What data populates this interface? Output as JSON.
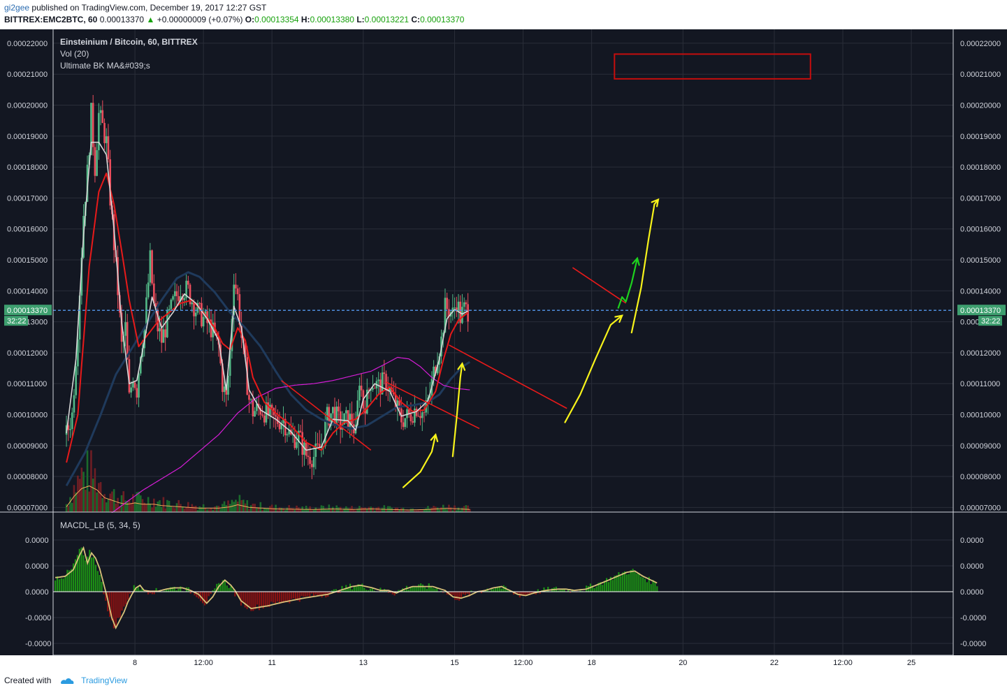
{
  "header": {
    "author": "gi2gee",
    "published_text": "published on TradingView.com, December 19, 2017 12:27 GST",
    "symbol": "BITTREX:EMC2BTC, 60",
    "last": "0.00013370",
    "change": "+0.00000009 (+0.07%)",
    "change_arrow": "▲",
    "o_label": "O:",
    "o": "0.00013354",
    "h_label": "H:",
    "h": "0.00013380",
    "l_label": "L:",
    "l": "0.00013221",
    "c_label": "C:",
    "c": "0.00013370"
  },
  "footer": {
    "created_with": "Created with",
    "brand": "TradingView"
  },
  "legend": {
    "title": "Einsteinium / Bitcoin, 60, BITTREX",
    "vol": "Vol (20)",
    "indicator": "Ultimate BK MA&#039;s",
    "macd": "MACDL_LB (5, 34, 5)"
  },
  "price_tag": {
    "value": "0.00013370",
    "countdown": "32:22"
  },
  "colors": {
    "background": "#131722",
    "grid": "#2a2e39",
    "up": "#53b987",
    "down": "#eb4d5c",
    "ma_red": "#e81a1a",
    "ma_white": "#d7d7d7",
    "ma_blue": "#1f3a5c",
    "ma_magenta": "#d51dd6",
    "vol_ma": "#f2a85b",
    "price_line": "#4f8cdb",
    "price_tag": "#3e9f6f",
    "annotation_yellow": "#f7f31a",
    "annotation_green": "#1ed21e",
    "annotation_red": "#e81a1a",
    "macd_hist_up": "#1c8f15",
    "macd_hist_down": "#8a1212",
    "macd_signal": "#d8c27a"
  },
  "chart_data": {
    "type": "candlestick",
    "y_axis_labels": [
      "0.00022000",
      "0.00021000",
      "0.00020000",
      "0.00019000",
      "0.00018000",
      "0.00017000",
      "0.00016000",
      "0.00015000",
      "0.00014000",
      "0.00013000",
      "0.00012000",
      "0.00011000",
      "0.00010000",
      "0.00009000",
      "0.00008000",
      "0.00007000"
    ],
    "y_axis_values": [
      0.00022,
      0.00021,
      0.0002,
      0.00019,
      0.00018,
      0.00017,
      0.00016,
      0.00015,
      0.00014,
      0.00013,
      0.00012,
      0.00011,
      0.0001,
      9e-05,
      8e-05,
      7e-05
    ],
    "ylim": [
      6.85e-05,
      0.0002245
    ],
    "x_ticks": [
      {
        "label": "8",
        "t": 36
      },
      {
        "label": "12:00",
        "t": 72
      },
      {
        "label": "11",
        "t": 108
      },
      {
        "label": "13",
        "t": 156
      },
      {
        "label": "15",
        "t": 204
      },
      {
        "label": "12:00",
        "t": 240
      },
      {
        "label": "18",
        "t": 276
      },
      {
        "label": "20",
        "t": 324
      },
      {
        "label": "22",
        "t": 372
      },
      {
        "label": "12:00",
        "t": 408
      },
      {
        "label": "25",
        "t": 444
      }
    ],
    "x_range": [
      -7,
      466
    ],
    "last_price": 0.0001337,
    "price_keypoints": [
      [
        0,
        9.35e-05
      ],
      [
        3,
        0.0001
      ],
      [
        6,
        0.000128
      ],
      [
        9,
        0.000165
      ],
      [
        11,
        0.000178
      ],
      [
        13,
        0.000197
      ],
      [
        15,
        0.00018
      ],
      [
        17,
        0.000197
      ],
      [
        19,
        0.000193
      ],
      [
        21,
        0.000188
      ],
      [
        23,
        0.00017
      ],
      [
        25,
        0.000155
      ],
      [
        27,
        0.00014
      ],
      [
        29,
        0.000122
      ],
      [
        31,
        0.000128
      ],
      [
        33,
        0.000105
      ],
      [
        35,
        0.000113
      ],
      [
        37,
        0.000108
      ],
      [
        39,
        0.000121
      ],
      [
        41,
        0.000128
      ],
      [
        44,
        0.00015
      ],
      [
        46,
        0.000135
      ],
      [
        48,
        0.000128
      ],
      [
        50,
        0.000124
      ],
      [
        53,
        0.00013
      ],
      [
        56,
        0.000136
      ],
      [
        60,
        0.000141
      ],
      [
        64,
        0.00014
      ],
      [
        68,
        0.000134
      ],
      [
        72,
        0.000131
      ],
      [
        76,
        0.000128
      ],
      [
        80,
        0.000122
      ],
      [
        82,
        0.00011
      ],
      [
        84,
        0.000105
      ],
      [
        86,
        0.00012
      ],
      [
        88,
        0.000145
      ],
      [
        90,
        0.000138
      ],
      [
        92,
        0.000125
      ],
      [
        94,
        0.000115
      ],
      [
        96,
        0.000105
      ],
      [
        98,
        0.000101
      ],
      [
        102,
        0.000102
      ],
      [
        106,
        0.0001
      ],
      [
        110,
        9.8e-05
      ],
      [
        114,
        9.85e-05
      ],
      [
        118,
        9.25e-05
      ],
      [
        122,
        9.3e-05
      ],
      [
        126,
        8.7e-05
      ],
      [
        130,
        8.65e-05
      ],
      [
        134,
        9e-05
      ],
      [
        137,
        9.9e-05
      ],
      [
        140,
        0.000101
      ],
      [
        144,
        9.7e-05
      ],
      [
        148,
        9.85e-05
      ],
      [
        150,
        9.8e-05
      ],
      [
        152,
        9.35e-05
      ],
      [
        154,
        0.000112
      ],
      [
        156,
        0.000103
      ],
      [
        158,
        0.000105
      ],
      [
        160,
        0.000111
      ],
      [
        164,
        0.000109
      ],
      [
        168,
        0.000111
      ],
      [
        172,
        0.0001045
      ],
      [
        176,
        9.85e-05
      ],
      [
        180,
        9.95e-05
      ],
      [
        184,
        0.0001025
      ],
      [
        188,
        0.0001
      ],
      [
        191,
        0.0001065
      ],
      [
        193,
        0.0001135
      ],
      [
        195,
        0.0001195
      ],
      [
        197,
        0.000124
      ],
      [
        199,
        0.0001345
      ],
      [
        201,
        0.000134
      ],
      [
        203,
        0.0001325
      ],
      [
        205,
        0.000137
      ],
      [
        207,
        0.0001315
      ],
      [
        209,
        0.000134
      ],
      [
        211,
        0.0001337
      ]
    ],
    "ma_white_keypoints": [
      [
        0,
        9.4e-05
      ],
      [
        5,
        0.000118
      ],
      [
        9,
        0.000158
      ],
      [
        13,
        0.000188
      ],
      [
        17,
        0.000188
      ],
      [
        21,
        0.000184
      ],
      [
        25,
        0.00016
      ],
      [
        29,
        0.00013
      ],
      [
        33,
        0.00011
      ],
      [
        37,
        0.000111
      ],
      [
        41,
        0.000124
      ],
      [
        45,
        0.000138
      ],
      [
        50,
        0.000128
      ],
      [
        56,
        0.000133
      ],
      [
        62,
        0.000139
      ],
      [
        68,
        0.000136
      ],
      [
        74,
        0.000131
      ],
      [
        80,
        0.000124
      ],
      [
        84,
        0.000108
      ],
      [
        88,
        0.000135
      ],
      [
        92,
        0.000128
      ],
      [
        96,
        0.000108
      ],
      [
        102,
        0.0001015
      ],
      [
        110,
        9.85e-05
      ],
      [
        118,
        9.45e-05
      ],
      [
        126,
        8.85e-05
      ],
      [
        134,
        8.95e-05
      ],
      [
        140,
        9.85e-05
      ],
      [
        148,
        9.8e-05
      ],
      [
        152,
        9.5e-05
      ],
      [
        156,
        0.000105
      ],
      [
        162,
        0.00011
      ],
      [
        170,
        0.0001075
      ],
      [
        176,
        9.95e-05
      ],
      [
        184,
        0.000101
      ],
      [
        190,
        0.0001045
      ],
      [
        196,
        0.000118
      ],
      [
        200,
        0.000131
      ],
      [
        204,
        0.000134
      ],
      [
        208,
        0.0001325
      ],
      [
        211,
        0.0001335
      ]
    ],
    "ma_red_keypoints": [
      [
        0,
        8.45e-05
      ],
      [
        6,
        0.0001
      ],
      [
        12,
        0.000148
      ],
      [
        17,
        0.000172
      ],
      [
        21,
        0.000178
      ],
      [
        25,
        0.000168
      ],
      [
        29,
        0.000153
      ],
      [
        33,
        0.000137
      ],
      [
        38,
        0.000122
      ],
      [
        43,
        0.000126
      ],
      [
        48,
        0.00013
      ],
      [
        54,
        0.000133
      ],
      [
        60,
        0.000136
      ],
      [
        66,
        0.000137
      ],
      [
        72,
        0.000133
      ],
      [
        78,
        0.000128
      ],
      [
        82,
        0.000123
      ],
      [
        86,
        0.000121
      ],
      [
        90,
        0.000128
      ],
      [
        94,
        0.000124
      ],
      [
        98,
        0.000112
      ],
      [
        104,
        0.000104
      ],
      [
        110,
        0.0001005
      ],
      [
        118,
        9.65e-05
      ],
      [
        126,
        9.1e-05
      ],
      [
        134,
        8.85e-05
      ],
      [
        140,
        9.4e-05
      ],
      [
        146,
        9.75e-05
      ],
      [
        152,
        9.85e-05
      ],
      [
        158,
        0.000102
      ],
      [
        164,
        0.0001065
      ],
      [
        170,
        0.000109
      ],
      [
        176,
        0.000104
      ],
      [
        182,
        0.000101
      ],
      [
        188,
        0.0001015
      ],
      [
        194,
        0.0001075
      ],
      [
        198,
        0.0001175
      ],
      [
        202,
        0.000126
      ],
      [
        206,
        0.0001305
      ],
      [
        211,
        0.000133
      ]
    ],
    "ma_blue_keypoints": [
      [
        0,
        7.7e-05
      ],
      [
        10,
        8.8e-05
      ],
      [
        18,
        0.0001
      ],
      [
        26,
        0.000113
      ],
      [
        34,
        0.000121
      ],
      [
        42,
        0.000129
      ],
      [
        50,
        0.000137
      ],
      [
        58,
        0.000144
      ],
      [
        64,
        0.000146
      ],
      [
        70,
        0.0001445
      ],
      [
        78,
        0.0001395
      ],
      [
        86,
        0.000133
      ],
      [
        94,
        0.000128
      ],
      [
        102,
        0.000122
      ],
      [
        110,
        0.000114
      ],
      [
        118,
        0.0001065
      ],
      [
        126,
        0.0001015
      ],
      [
        134,
        9.85e-05
      ],
      [
        142,
        9.65e-05
      ],
      [
        150,
        9.55e-05
      ],
      [
        158,
        9.65e-05
      ],
      [
        166,
        9.95e-05
      ],
      [
        174,
        0.0001025
      ],
      [
        182,
        0.000103
      ],
      [
        190,
        0.000104
      ],
      [
        196,
        0.0001065
      ],
      [
        202,
        0.0001115
      ],
      [
        208,
        0.0001155
      ],
      [
        212,
        0.000117
      ]
    ],
    "ma_magenta_keypoints": [
      [
        0,
        6.35e-05
      ],
      [
        20,
        6.65e-05
      ],
      [
        40,
        7.55e-05
      ],
      [
        60,
        8.3e-05
      ],
      [
        80,
        9.35e-05
      ],
      [
        90,
        0.0001005
      ],
      [
        100,
        0.0001055
      ],
      [
        110,
        0.0001085
      ],
      [
        120,
        0.0001095
      ],
      [
        130,
        0.00011
      ],
      [
        140,
        0.000111
      ],
      [
        150,
        0.0001125
      ],
      [
        160,
        0.000114
      ],
      [
        168,
        0.0001165
      ],
      [
        174,
        0.0001185
      ],
      [
        180,
        0.000118
      ],
      [
        186,
        0.0001155
      ],
      [
        192,
        0.000112
      ],
      [
        198,
        0.0001095
      ],
      [
        204,
        0.0001085
      ],
      [
        212,
        0.000108
      ]
    ],
    "volume_keypoints": [
      [
        0,
        0.2
      ],
      [
        4,
        0.6
      ],
      [
        8,
        0.9
      ],
      [
        12,
        1.0
      ],
      [
        16,
        0.85
      ],
      [
        20,
        0.55
      ],
      [
        24,
        0.45
      ],
      [
        28,
        0.35
      ],
      [
        32,
        0.3
      ],
      [
        36,
        0.35
      ],
      [
        40,
        0.3
      ],
      [
        46,
        0.3
      ],
      [
        50,
        0.25
      ],
      [
        60,
        0.2
      ],
      [
        70,
        0.15
      ],
      [
        80,
        0.15
      ],
      [
        86,
        0.2
      ],
      [
        90,
        0.28
      ],
      [
        96,
        0.18
      ],
      [
        110,
        0.12
      ],
      [
        130,
        0.1
      ],
      [
        140,
        0.12
      ],
      [
        150,
        0.1
      ],
      [
        160,
        0.12
      ],
      [
        170,
        0.1
      ],
      [
        180,
        0.08
      ],
      [
        190,
        0.1
      ],
      [
        200,
        0.14
      ],
      [
        212,
        0.1
      ]
    ],
    "macd_keypoints": [
      [
        0,
        0.55
      ],
      [
        4,
        0.6
      ],
      [
        8,
        0.85
      ],
      [
        11,
        1.4
      ],
      [
        13,
        1.7
      ],
      [
        15,
        1.1
      ],
      [
        17,
        1.5
      ],
      [
        19,
        1.3
      ],
      [
        21,
        0.9
      ],
      [
        23,
        0.3
      ],
      [
        25,
        -0.3
      ],
      [
        27,
        -1.0
      ],
      [
        29,
        -1.4
      ],
      [
        31,
        -1.1
      ],
      [
        33,
        -0.8
      ],
      [
        35,
        -0.4
      ],
      [
        37,
        -0.1
      ],
      [
        39,
        0.15
      ],
      [
        41,
        0.25
      ],
      [
        43,
        0.05
      ],
      [
        46,
        0.02
      ],
      [
        50,
        0.02
      ],
      [
        54,
        0.1
      ],
      [
        58,
        0.15
      ],
      [
        62,
        0.15
      ],
      [
        66,
        0.05
      ],
      [
        70,
        -0.1
      ],
      [
        74,
        -0.45
      ],
      [
        77,
        -0.2
      ],
      [
        80,
        0.2
      ],
      [
        83,
        0.45
      ],
      [
        86,
        0.25
      ],
      [
        88,
        0.05
      ],
      [
        91,
        -0.35
      ],
      [
        96,
        -0.65
      ],
      [
        104,
        -0.55
      ],
      [
        112,
        -0.4
      ],
      [
        122,
        -0.25
      ],
      [
        134,
        -0.1
      ],
      [
        140,
        0.05
      ],
      [
        146,
        0.2
      ],
      [
        150,
        0.25
      ],
      [
        156,
        0.15
      ],
      [
        160,
        0.05
      ],
      [
        164,
        0.05
      ],
      [
        168,
        -0.05
      ],
      [
        172,
        0.1
      ],
      [
        176,
        0.2
      ],
      [
        180,
        0.2
      ],
      [
        186,
        0.2
      ],
      [
        192,
        0.05
      ],
      [
        196,
        -0.2
      ],
      [
        200,
        -0.25
      ],
      [
        204,
        -0.15
      ],
      [
        208,
        0.0
      ],
      [
        212,
        0.05
      ],
      [
        216,
        0.15
      ],
      [
        220,
        0.2
      ],
      [
        224,
        0.05
      ],
      [
        228,
        -0.1
      ],
      [
        232,
        -0.15
      ],
      [
        236,
        -0.05
      ],
      [
        242,
        0.05
      ],
      [
        248,
        0.1
      ],
      [
        252,
        0.1
      ],
      [
        256,
        0.05
      ],
      [
        262,
        0.1
      ],
      [
        270,
        0.35
      ],
      [
        276,
        0.55
      ],
      [
        282,
        0.75
      ],
      [
        286,
        0.8
      ],
      [
        290,
        0.6
      ],
      [
        294,
        0.45
      ],
      [
        298,
        0.3
      ]
    ],
    "annotations": {
      "yellow_arrows": [
        [
          [
            177,
            7.65e-05
          ],
          [
            186,
            8.15e-05
          ],
          [
            192,
            8.8e-05
          ],
          [
            194,
            9.35e-05
          ]
        ],
        [
          [
            203,
            8.65e-05
          ],
          [
            205,
            9.85e-05
          ],
          [
            207,
            0.000112
          ],
          [
            208,
            0.0001165
          ]
        ],
        [
          [
            262,
            9.75e-05
          ],
          [
            270,
            0.0001065
          ],
          [
            278,
            0.000118
          ],
          [
            286,
            0.000129
          ],
          [
            292,
            0.000132
          ]
        ],
        [
          [
            297,
            0.0001265
          ],
          [
            302,
            0.000141
          ],
          [
            306,
            0.000157
          ],
          [
            309,
            0.000168
          ],
          [
            311,
            0.0001695
          ]
        ]
      ],
      "green_arrow": [
        [
          290,
          0.0001345
        ],
        [
          292,
          0.000138
        ],
        [
          294,
          0.0001365
        ],
        [
          297,
          0.0001425
        ],
        [
          300,
          0.0001505
        ]
      ],
      "red_trendlines": [
        [
          [
            113,
            0.000111
          ],
          [
            160,
            8.85e-05
          ]
        ],
        [
          [
            168,
            0.0001105
          ],
          [
            217,
            9.55e-05
          ]
        ],
        [
          [
            201,
            0.0001225
          ],
          [
            263,
            0.000102
          ]
        ],
        [
          [
            266,
            0.0001475
          ],
          [
            294,
            0.000136
          ]
        ]
      ],
      "red_rectangle": [
        [
          288,
          0.0002165
        ],
        [
          391,
          0.0002085
        ]
      ]
    },
    "macd_axis_labels": [
      "0.0000",
      "0.0000",
      "0.0000",
      "-0.0000",
      "-0.0000"
    ],
    "macd_axis_values": [
      2,
      1,
      0,
      -1,
      -2
    ],
    "macd_ylim": [
      -2.5,
      2.5
    ]
  }
}
